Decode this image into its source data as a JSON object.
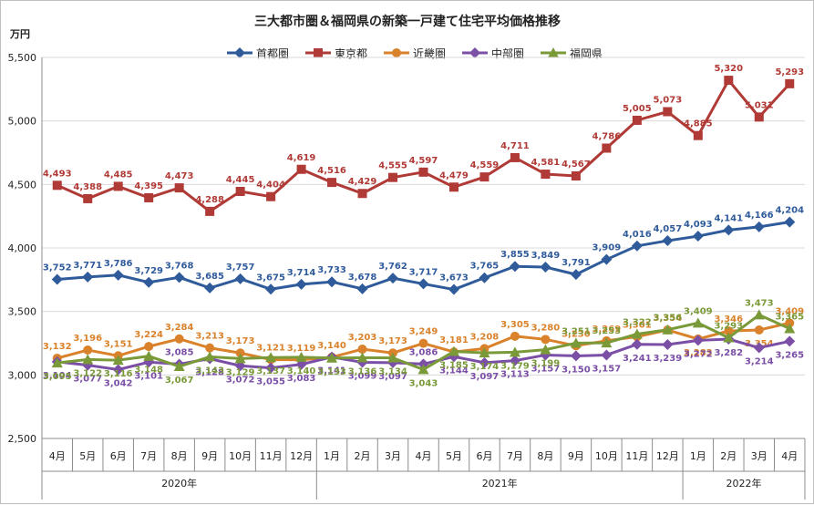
{
  "chart_data": {
    "type": "line",
    "title": "三大都市圏＆福岡県の新築一戸建て住宅平均価格推移",
    "ylabel": "万円",
    "ylim": [
      2500,
      5500
    ],
    "yticks": [
      "2,500",
      "3,000",
      "3,500",
      "4,000",
      "4,500",
      "5,000",
      "5,500"
    ],
    "categories": [
      "4月",
      "5月",
      "6月",
      "7月",
      "8月",
      "9月",
      "10月",
      "11月",
      "12月",
      "1月",
      "2月",
      "3月",
      "4月",
      "5月",
      "6月",
      "7月",
      "8月",
      "9月",
      "10月",
      "11月",
      "12月",
      "1月",
      "2月",
      "3月",
      "4月"
    ],
    "years": [
      {
        "label": "2020年",
        "start": 0,
        "end": 8
      },
      {
        "label": "2021年",
        "start": 9,
        "end": 20
      },
      {
        "label": "2022年",
        "start": 21,
        "end": 24
      }
    ],
    "legend_position": "top",
    "grid": true,
    "series": [
      {
        "name": "首都圏",
        "color": "#2f5b9b",
        "marker": "diamond",
        "values": [
          3752,
          3771,
          3786,
          3729,
          3768,
          3685,
          3757,
          3675,
          3714,
          3733,
          3678,
          3762,
          3717,
          3673,
          3765,
          3855,
          3849,
          3791,
          3909,
          4016,
          4057,
          4093,
          4141,
          4166,
          4204
        ],
        "labels": [
          "3,752",
          "3,771",
          "3,786",
          "3,729",
          "3,768",
          "3,685",
          "3,757",
          "3,675",
          "3,714",
          "3,733",
          "3,678",
          "3,762",
          "3,717",
          "3,673",
          "3,765",
          "3,855",
          "3,849",
          "3,791",
          "3,909",
          "4,016",
          "4,057",
          "4,093",
          "4,141",
          "4,166",
          "4,204"
        ],
        "label_pos": [
          "a",
          "a",
          "a",
          "a",
          "a",
          "a",
          "a",
          "a",
          "a",
          "a",
          "a",
          "a",
          "a",
          "a",
          "a",
          "a",
          "a",
          "a",
          "a",
          "a",
          "a",
          "a",
          "a",
          "a",
          "a"
        ]
      },
      {
        "name": "東京都",
        "color": "#b03a36",
        "marker": "square",
        "values": [
          4493,
          4388,
          4485,
          4395,
          4473,
          4288,
          4445,
          4404,
          4619,
          4516,
          4429,
          4555,
          4597,
          4479,
          4559,
          4711,
          4581,
          4567,
          4786,
          5005,
          5073,
          4885,
          5320,
          5031,
          5293
        ],
        "labels": [
          "4,493",
          "4,388",
          "4,485",
          "4,395",
          "4,473",
          "4,288",
          "4,445",
          "4,404",
          "4,619",
          "4,516",
          "4,429",
          "4,555",
          "4,597",
          "4,479",
          "4,559",
          "4,711",
          "4,581",
          "4,567",
          "4,786",
          "5,005",
          "5,073",
          "4,885",
          "5,320",
          "5,031",
          "5,293"
        ],
        "label_pos": [
          "a",
          "a",
          "a",
          "a",
          "a",
          "a",
          "a",
          "a",
          "a",
          "a",
          "a",
          "a",
          "a",
          "a",
          "a",
          "a",
          "a",
          "a",
          "a",
          "a",
          "a",
          "a",
          "a",
          "a",
          "a"
        ]
      },
      {
        "name": "近畿圏",
        "color": "#d9822b",
        "marker": "circle",
        "values": [
          3132,
          3196,
          3151,
          3224,
          3284,
          3213,
          3173,
          3121,
          3119,
          3140,
          3203,
          3173,
          3249,
          3181,
          3208,
          3305,
          3280,
          3230,
          3269,
          3301,
          3354,
          3283,
          3346,
          3354,
          3409
        ],
        "labels": [
          "3,132",
          "3,196",
          "3,151",
          "3,224",
          "3,284",
          "3,213",
          "3,173",
          "3,121",
          "3,119",
          "3,140",
          "3,203",
          "3,173",
          "3,249",
          "3,181",
          "3,208",
          "3,305",
          "3,280",
          "3,230",
          "3,269",
          "3,301",
          "3,354",
          "3,283",
          "3,346",
          "3,354",
          "3,409"
        ],
        "label_pos": [
          "a",
          "a",
          "a",
          "a",
          "a",
          "a",
          "a",
          "a",
          "a",
          "a",
          "a",
          "a",
          "a",
          "a",
          "a",
          "a",
          "a",
          "a",
          "a",
          "a",
          "a",
          "b",
          "a",
          "b",
          "a"
        ]
      },
      {
        "name": "中部圏",
        "color": "#7b4fa6",
        "marker": "diamond",
        "values": [
          3104,
          3077,
          3042,
          3101,
          3085,
          3128,
          3072,
          3055,
          3083,
          3141,
          3099,
          3097,
          3086,
          3144,
          3097,
          3113,
          3157,
          3150,
          3157,
          3241,
          3239,
          3272,
          3282,
          3214,
          3265
        ],
        "labels": [
          "3,104",
          "3,077",
          "3,042",
          "3,101",
          "3,085",
          "3,128",
          "3,072",
          "3,055",
          "3,083",
          "3,141",
          "3,099",
          "3,097",
          "3,086",
          "3,144",
          "3,097",
          "3,113",
          "3,157",
          "3,150",
          "3,157",
          "3,241",
          "3,239",
          "3,272",
          "3,282",
          "3,214",
          "3,265"
        ],
        "label_pos": [
          "b",
          "b",
          "b",
          "b",
          "a",
          "b",
          "b",
          "b",
          "b",
          "b",
          "b",
          "b",
          "a",
          "b",
          "b",
          "b",
          "b",
          "b",
          "b",
          "b",
          "b",
          "b",
          "b",
          "b",
          "b"
        ]
      },
      {
        "name": "福岡県",
        "color": "#7a9a3a",
        "marker": "triangle",
        "values": [
          3095,
          3122,
          3116,
          3148,
          3067,
          3143,
          3129,
          3137,
          3140,
          3133,
          3136,
          3134,
          3043,
          3185,
          3174,
          3179,
          3199,
          3251,
          3253,
          3322,
          3356,
          3409,
          3293,
          3473,
          3365
        ],
        "labels": [
          "3,095",
          "3,122",
          "3,116",
          "3,148",
          "3,067",
          "3,143",
          "3,129",
          "3,137",
          "3,140",
          "3,133",
          "3,136",
          "3,134",
          "3,043",
          "3,185",
          "3,174",
          "3,179",
          "3,199",
          "3,251",
          "3,253",
          "3,322",
          "3,356",
          "3,409",
          "3,293",
          "3,473",
          "3,365"
        ],
        "label_pos": [
          "b",
          "b",
          "b",
          "b",
          "b",
          "b",
          "b",
          "b",
          "b",
          "b",
          "b",
          "b",
          "b",
          "b",
          "b",
          "b",
          "b",
          "a",
          "a",
          "a",
          "a",
          "a",
          "a",
          "a",
          "a"
        ]
      }
    ]
  }
}
